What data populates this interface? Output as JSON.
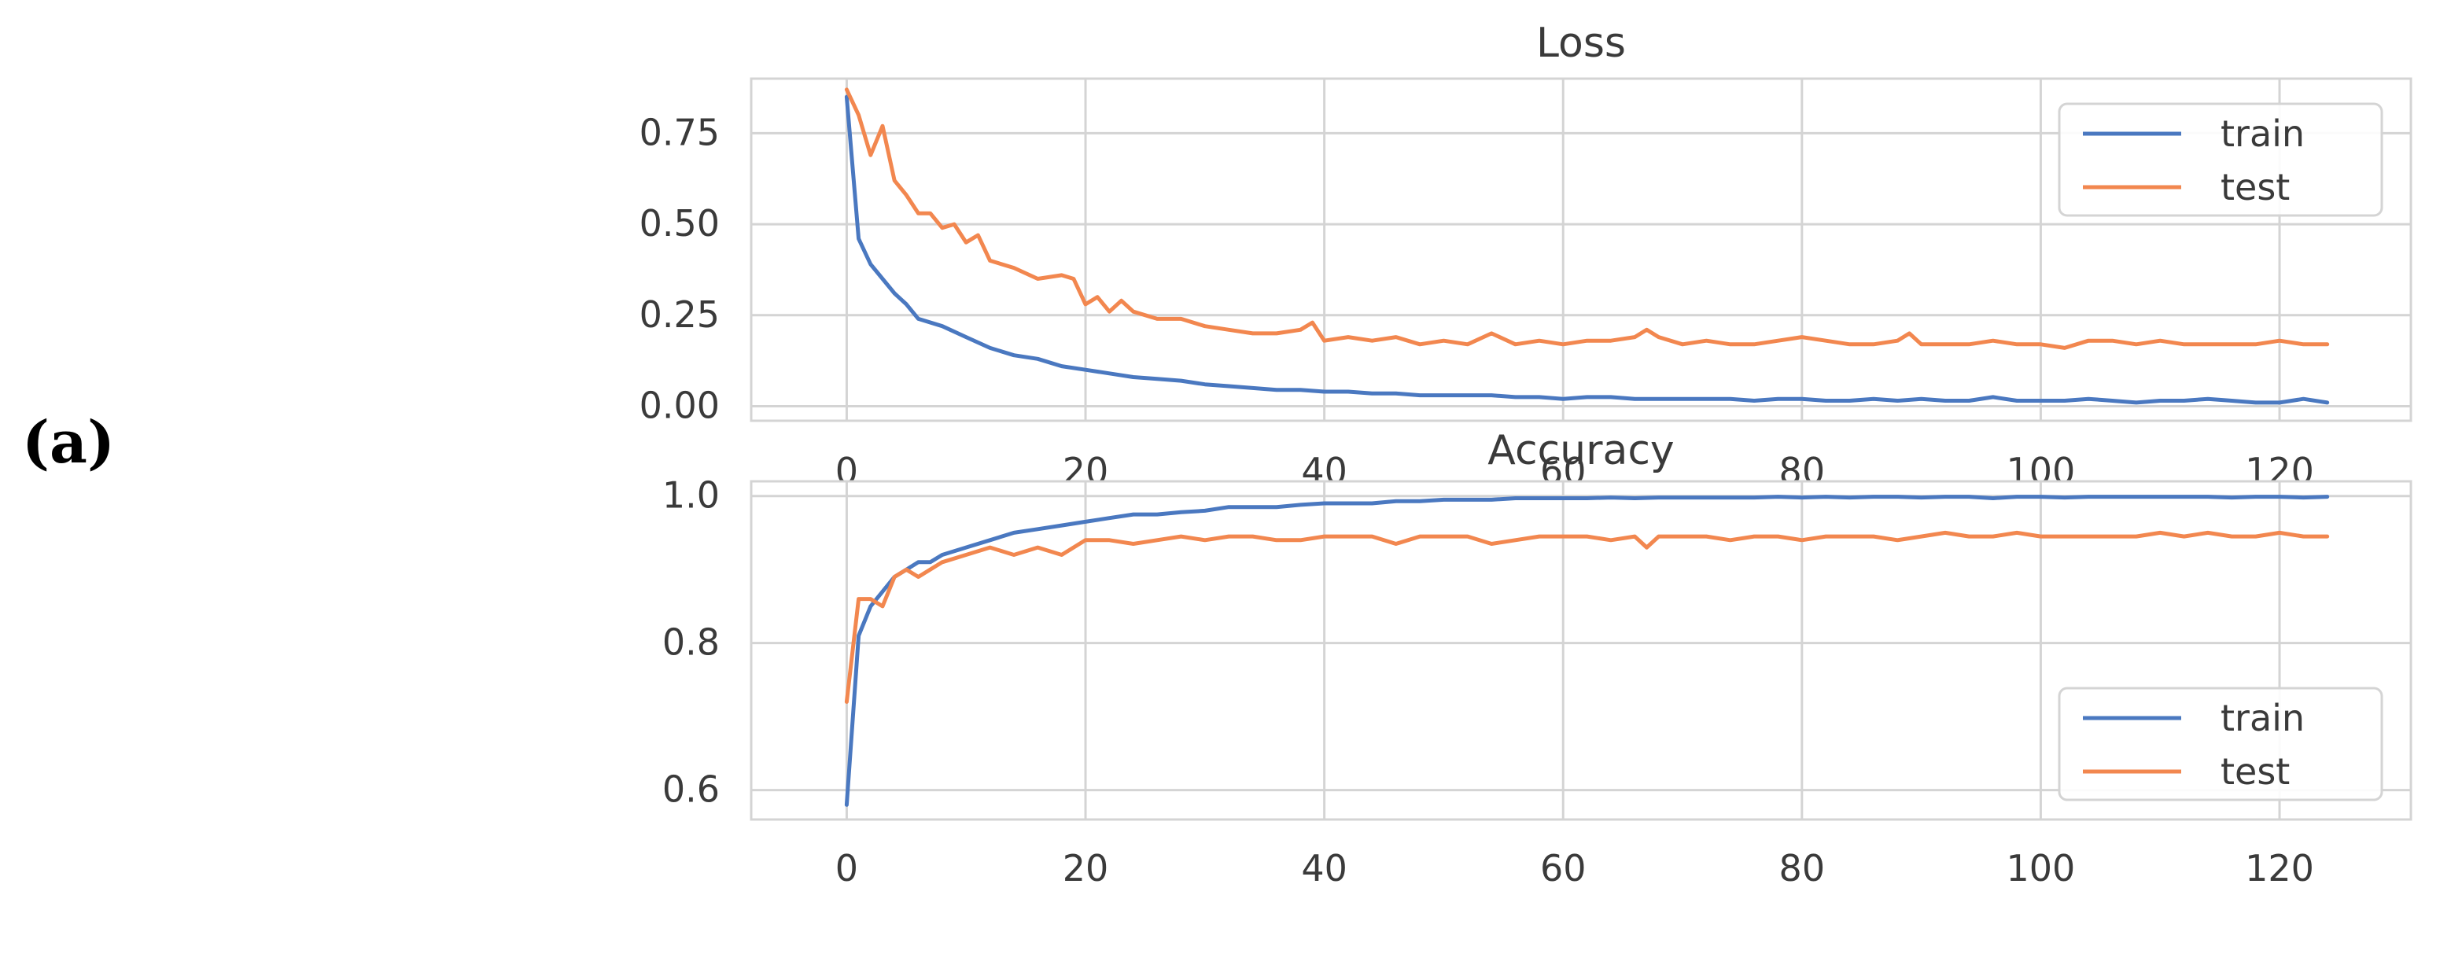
{
  "panel_label": "(a)",
  "colors": {
    "train": "#4a78c0",
    "test": "#f2874f",
    "grid": "#d4d4d4",
    "axes_border": "#d4d4d4",
    "text": "#3a3a3a"
  },
  "chart_data": [
    {
      "type": "line",
      "title": "Loss",
      "xlabel": "",
      "ylabel": "",
      "xlim": [
        -8,
        131
      ],
      "ylim": [
        -0.04,
        0.9
      ],
      "xticks": [
        0,
        20,
        40,
        60,
        80,
        100,
        120
      ],
      "xtick_labels": [
        "0",
        "20",
        "40",
        "60",
        "80",
        "100",
        "120"
      ],
      "yticks": [
        0.0,
        0.25,
        0.5,
        0.75
      ],
      "ytick_labels": [
        "0.00",
        "0.25",
        "0.50",
        "0.75"
      ],
      "grid": true,
      "legend_position": "top-right",
      "series": [
        {
          "name": "train",
          "x": [
            0,
            1,
            2,
            3,
            4,
            5,
            6,
            8,
            10,
            12,
            14,
            16,
            18,
            20,
            22,
            24,
            26,
            28,
            30,
            32,
            34,
            36,
            38,
            40,
            42,
            44,
            46,
            48,
            50,
            52,
            54,
            56,
            58,
            60,
            62,
            64,
            66,
            68,
            70,
            72,
            74,
            76,
            78,
            80,
            82,
            84,
            86,
            88,
            90,
            92,
            94,
            96,
            98,
            100,
            102,
            104,
            106,
            108,
            110,
            112,
            114,
            116,
            118,
            120,
            122,
            124
          ],
          "y": [
            0.85,
            0.46,
            0.39,
            0.35,
            0.31,
            0.28,
            0.24,
            0.22,
            0.19,
            0.16,
            0.14,
            0.13,
            0.11,
            0.1,
            0.09,
            0.08,
            0.075,
            0.07,
            0.06,
            0.055,
            0.05,
            0.045,
            0.045,
            0.04,
            0.04,
            0.035,
            0.035,
            0.03,
            0.03,
            0.03,
            0.03,
            0.025,
            0.025,
            0.02,
            0.025,
            0.025,
            0.02,
            0.02,
            0.02,
            0.02,
            0.02,
            0.015,
            0.02,
            0.02,
            0.015,
            0.015,
            0.02,
            0.015,
            0.02,
            0.015,
            0.015,
            0.025,
            0.015,
            0.015,
            0.015,
            0.02,
            0.015,
            0.01,
            0.015,
            0.015,
            0.02,
            0.015,
            0.01,
            0.01,
            0.02,
            0.01
          ]
        },
        {
          "name": "test",
          "x": [
            0,
            1,
            2,
            3,
            4,
            5,
            6,
            7,
            8,
            9,
            10,
            11,
            12,
            14,
            16,
            18,
            19,
            20,
            21,
            22,
            23,
            24,
            26,
            28,
            30,
            32,
            34,
            36,
            38,
            39,
            40,
            42,
            44,
            46,
            48,
            50,
            52,
            54,
            56,
            58,
            60,
            62,
            64,
            66,
            67,
            68,
            70,
            72,
            74,
            76,
            78,
            80,
            82,
            84,
            86,
            88,
            89,
            90,
            92,
            94,
            96,
            98,
            100,
            102,
            104,
            106,
            108,
            110,
            112,
            114,
            116,
            118,
            120,
            122,
            124
          ],
          "y": [
            0.87,
            0.8,
            0.69,
            0.77,
            0.62,
            0.58,
            0.53,
            0.53,
            0.49,
            0.5,
            0.45,
            0.47,
            0.4,
            0.38,
            0.35,
            0.36,
            0.35,
            0.28,
            0.3,
            0.26,
            0.29,
            0.26,
            0.24,
            0.24,
            0.22,
            0.21,
            0.2,
            0.2,
            0.21,
            0.23,
            0.18,
            0.19,
            0.18,
            0.19,
            0.17,
            0.18,
            0.17,
            0.2,
            0.17,
            0.18,
            0.17,
            0.18,
            0.18,
            0.19,
            0.21,
            0.19,
            0.17,
            0.18,
            0.17,
            0.17,
            0.18,
            0.19,
            0.18,
            0.17,
            0.17,
            0.18,
            0.2,
            0.17,
            0.17,
            0.17,
            0.18,
            0.17,
            0.17,
            0.16,
            0.18,
            0.18,
            0.17,
            0.18,
            0.17,
            0.17,
            0.17,
            0.17,
            0.18,
            0.17,
            0.17
          ]
        }
      ]
    },
    {
      "type": "line",
      "title": "Accuracy",
      "xlabel": "",
      "ylabel": "",
      "xlim": [
        -8,
        131
      ],
      "ylim": [
        0.56,
        1.02
      ],
      "xticks": [
        0,
        20,
        40,
        60,
        80,
        100,
        120
      ],
      "xtick_labels": [
        "0",
        "20",
        "40",
        "60",
        "80",
        "100",
        "120"
      ],
      "yticks": [
        0.6,
        0.8,
        1.0
      ],
      "ytick_labels": [
        "0.6",
        "0.8",
        "1.0"
      ],
      "grid": true,
      "legend_position": "bottom-right",
      "series": [
        {
          "name": "train",
          "x": [
            0,
            1,
            2,
            3,
            4,
            5,
            6,
            7,
            8,
            10,
            12,
            14,
            16,
            18,
            20,
            22,
            24,
            26,
            28,
            30,
            32,
            34,
            36,
            38,
            40,
            42,
            44,
            46,
            48,
            50,
            52,
            54,
            56,
            58,
            60,
            62,
            64,
            66,
            68,
            70,
            72,
            74,
            76,
            78,
            80,
            82,
            84,
            86,
            88,
            90,
            92,
            94,
            96,
            98,
            100,
            102,
            104,
            106,
            108,
            110,
            112,
            114,
            116,
            118,
            120,
            122,
            124
          ],
          "y": [
            0.58,
            0.81,
            0.85,
            0.87,
            0.89,
            0.9,
            0.91,
            0.91,
            0.92,
            0.93,
            0.94,
            0.95,
            0.955,
            0.96,
            0.965,
            0.97,
            0.975,
            0.975,
            0.978,
            0.98,
            0.985,
            0.985,
            0.985,
            0.988,
            0.99,
            0.99,
            0.99,
            0.993,
            0.993,
            0.995,
            0.995,
            0.995,
            0.997,
            0.997,
            0.997,
            0.997,
            0.998,
            0.997,
            0.998,
            0.998,
            0.998,
            0.998,
            0.998,
            0.999,
            0.998,
            0.999,
            0.998,
            0.999,
            0.999,
            0.998,
            0.999,
            0.999,
            0.997,
            0.999,
            0.999,
            0.998,
            0.999,
            0.999,
            0.999,
            0.999,
            0.999,
            0.999,
            0.998,
            0.999,
            0.999,
            0.998,
            0.999
          ]
        },
        {
          "name": "test",
          "x": [
            0,
            1,
            2,
            3,
            4,
            5,
            6,
            8,
            10,
            12,
            14,
            16,
            18,
            20,
            22,
            24,
            26,
            28,
            30,
            32,
            34,
            36,
            38,
            40,
            42,
            44,
            46,
            48,
            50,
            52,
            54,
            56,
            58,
            60,
            62,
            64,
            66,
            67,
            68,
            70,
            72,
            74,
            76,
            78,
            80,
            82,
            84,
            86,
            88,
            90,
            92,
            94,
            96,
            98,
            100,
            102,
            104,
            106,
            108,
            110,
            112,
            114,
            116,
            118,
            120,
            122,
            124
          ],
          "y": [
            0.72,
            0.86,
            0.86,
            0.85,
            0.89,
            0.9,
            0.89,
            0.91,
            0.92,
            0.93,
            0.92,
            0.93,
            0.92,
            0.94,
            0.94,
            0.935,
            0.94,
            0.945,
            0.94,
            0.945,
            0.945,
            0.94,
            0.94,
            0.945,
            0.945,
            0.945,
            0.935,
            0.945,
            0.945,
            0.945,
            0.935,
            0.94,
            0.945,
            0.945,
            0.945,
            0.94,
            0.945,
            0.93,
            0.945,
            0.945,
            0.945,
            0.94,
            0.945,
            0.945,
            0.94,
            0.945,
            0.945,
            0.945,
            0.94,
            0.945,
            0.95,
            0.945,
            0.945,
            0.95,
            0.945,
            0.945,
            0.945,
            0.945,
            0.945,
            0.95,
            0.945,
            0.95,
            0.945,
            0.945,
            0.95,
            0.945,
            0.945
          ]
        }
      ]
    }
  ]
}
